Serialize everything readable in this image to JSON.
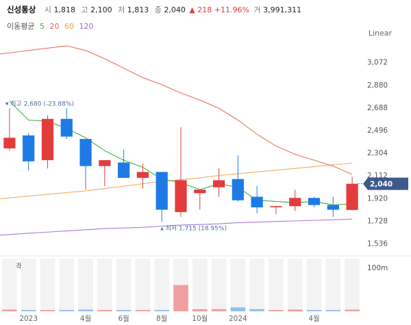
{
  "header": {
    "name": "신성통상",
    "open_label": "시",
    "open": "1,818",
    "high_label": "고",
    "high": "2,100",
    "low_label": "저",
    "low": "1,813",
    "close_label": "종",
    "close": "2,040",
    "change": "218",
    "change_pct": "+11.96%",
    "volume_label": "거",
    "volume": "3,991,311"
  },
  "ma": {
    "title": "이동평균",
    "periods": [
      {
        "label": "5",
        "color": "#3cb043"
      },
      {
        "label": "20",
        "color": "#e8634a"
      },
      {
        "label": "60",
        "color": "#f0a04b"
      },
      {
        "label": "120",
        "color": "#9b6cd8"
      }
    ]
  },
  "scale_label": "Linear",
  "volume_panel": {
    "title": "거래량",
    "tick": "100m"
  },
  "colors": {
    "up": "#e23c3c",
    "down": "#1e7be6",
    "price_tag": "#3d5a8a"
  },
  "chart_data": {
    "type": "candlestick",
    "interval": "monthly",
    "y_axis": {
      "ticks": [
        1536,
        1728,
        1920,
        2112,
        2304,
        2496,
        2688,
        2880,
        3072
      ],
      "tick_labels": [
        "1,536",
        "1,728",
        "1,920",
        "2,112",
        "2,304",
        "2,496",
        "2,688",
        "2,880",
        "3,072"
      ],
      "range": [
        1440,
        3250
      ]
    },
    "x_labels": [
      {
        "label": "2023",
        "index": 1
      },
      {
        "label": "4월",
        "index": 4
      },
      {
        "label": "6월",
        "index": 6
      },
      {
        "label": "8월",
        "index": 8
      },
      {
        "label": "10월",
        "index": 10
      },
      {
        "label": "2024",
        "index": 12
      },
      {
        "label": "4월",
        "index": 16
      }
    ],
    "candles": [
      {
        "o": 2340,
        "h": 2680,
        "l": 2320,
        "c": 2430
      },
      {
        "o": 2450,
        "h": 2470,
        "l": 2150,
        "c": 2230
      },
      {
        "o": 2240,
        "h": 2620,
        "l": 2170,
        "c": 2590
      },
      {
        "o": 2590,
        "h": 2680,
        "l": 2420,
        "c": 2440
      },
      {
        "o": 2420,
        "h": 2420,
        "l": 1990,
        "c": 2190
      },
      {
        "o": 2190,
        "h": 2240,
        "l": 2020,
        "c": 2240
      },
      {
        "o": 2220,
        "h": 2330,
        "l": 2090,
        "c": 2090
      },
      {
        "o": 2090,
        "h": 2210,
        "l": 2000,
        "c": 2140
      },
      {
        "o": 2140,
        "h": 2140,
        "l": 1715,
        "c": 1820
      },
      {
        "o": 1800,
        "h": 2520,
        "l": 1760,
        "c": 2070
      },
      {
        "o": 1960,
        "h": 1990,
        "l": 1820,
        "c": 1990
      },
      {
        "o": 2010,
        "h": 2170,
        "l": 1930,
        "c": 2070
      },
      {
        "o": 2080,
        "h": 2280,
        "l": 1890,
        "c": 1900
      },
      {
        "o": 1930,
        "h": 2020,
        "l": 1790,
        "c": 1840
      },
      {
        "o": 1840,
        "h": 1850,
        "l": 1780,
        "c": 1850
      },
      {
        "o": 1850,
        "h": 1990,
        "l": 1810,
        "c": 1920
      },
      {
        "o": 1920,
        "h": 1930,
        "l": 1840,
        "c": 1860
      },
      {
        "o": 1860,
        "h": 1930,
        "l": 1760,
        "c": 1820
      },
      {
        "o": 1818,
        "h": 2100,
        "l": 1813,
        "c": 2040
      }
    ],
    "ma5": [
      2740,
      2580,
      2570,
      2510,
      2430,
      2320,
      2240,
      2180,
      2080,
      2050,
      1990,
      2040,
      2010,
      1900,
      1890,
      1880,
      1890,
      1860,
      1870
    ],
    "ma20": [
      3150,
      3170,
      3190,
      3210,
      3170,
      3100,
      3020,
      2940,
      2880,
      2810,
      2750,
      2680,
      2580,
      2460,
      2360,
      2290,
      2240,
      2190,
      2120
    ],
    "ma60": [
      1920,
      1935,
      1950,
      1965,
      1980,
      2000,
      2020,
      2040,
      2060,
      2075,
      2090,
      2110,
      2125,
      2140,
      2155,
      2170,
      2185,
      2200,
      2215
    ],
    "ma120": [
      1610,
      1620,
      1630,
      1640,
      1650,
      1660,
      1665,
      1670,
      1680,
      1690,
      1695,
      1700,
      1710,
      1715,
      1720,
      1725,
      1730,
      1735,
      1740
    ],
    "max_annotation": {
      "index": 0,
      "label": "최고 2,680 (-23.88%)",
      "value": 2680
    },
    "min_annotation": {
      "index": 8,
      "label": "최저 1,715 (18.95%)",
      "value": 1715
    },
    "current_price": {
      "value": 2040,
      "label": "2,040"
    },
    "volume_scale_max": 120,
    "volumes": [
      4,
      3,
      3,
      3,
      4,
      3,
      3,
      3,
      3,
      60,
      5,
      5,
      9,
      5,
      3,
      4,
      3,
      3,
      4
    ]
  }
}
